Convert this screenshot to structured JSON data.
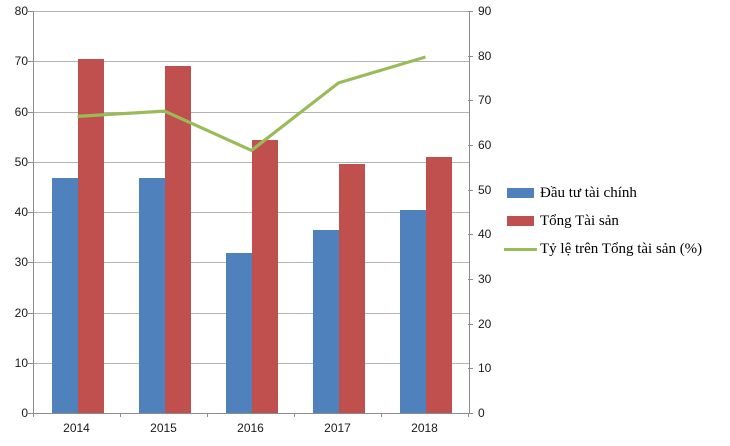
{
  "chart_data": {
    "type": "bar+line",
    "categories": [
      "2014",
      "2015",
      "2016",
      "2017",
      "2018"
    ],
    "series": [
      {
        "name": "Đầu tư tài chính",
        "type": "bar",
        "axis": "left",
        "color": "#4f81bd",
        "values": [
          46.7,
          46.7,
          31.9,
          36.5,
          40.4
        ]
      },
      {
        "name": "Tổng  Tài  sản",
        "type": "bar",
        "axis": "left",
        "color": "#c0504d",
        "values": [
          70.4,
          69.1,
          54.4,
          49.5,
          50.9
        ]
      },
      {
        "name": "Tỷ  lệ trên Tổng  tài  sản (%)",
        "type": "line",
        "axis": "right",
        "color": "#9bbb59",
        "values": [
          66.4,
          67.6,
          58.8,
          73.9,
          79.7
        ]
      }
    ],
    "left_axis": {
      "min": 0,
      "max": 80,
      "step": 10,
      "tick_labels": [
        "0",
        "10",
        "20",
        "30",
        "40",
        "50",
        "60",
        "70",
        "80"
      ]
    },
    "right_axis": {
      "min": 0,
      "max": 90,
      "step": 10,
      "tick_labels": [
        "0",
        "10",
        "20",
        "30",
        "40",
        "50",
        "60",
        "70",
        "80",
        "90"
      ]
    },
    "grid": true,
    "legend_position": "right",
    "title": "",
    "xlabel": "",
    "ylabel": ""
  },
  "style": {
    "gridline_color": "#b3b3b3",
    "axis_color": "#8c8c8c",
    "text_color": "#1a1a1a",
    "background": "#ffffff"
  }
}
